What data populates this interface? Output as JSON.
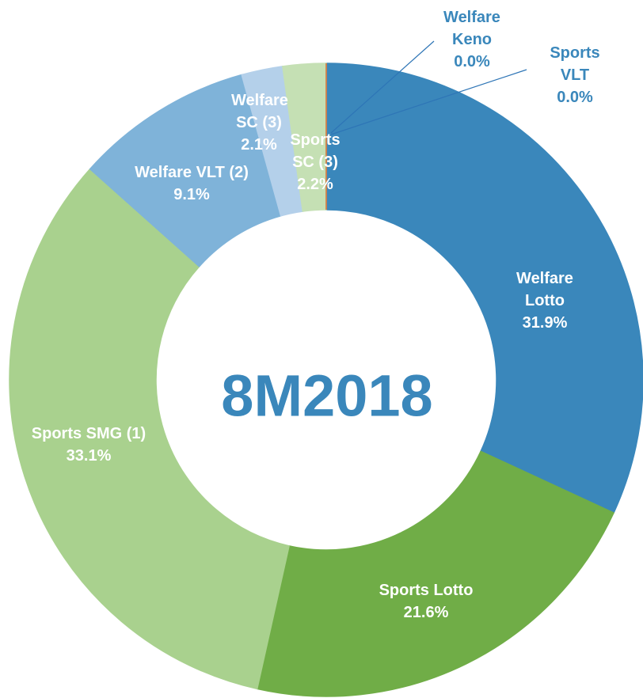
{
  "chart_data": {
    "type": "donut",
    "title": "8M2018",
    "categories": [
      "Welfare Lotto",
      "Sports Lotto",
      "Sports SMG (1)",
      "Welfare VLT (2)",
      "Welfare SC (3)",
      "Sports SC (3)",
      "Welfare Keno",
      "Sports VLT"
    ],
    "values": [
      31.9,
      21.6,
      33.1,
      9.1,
      2.1,
      2.2,
      0.0,
      0.0
    ],
    "value_labels": [
      "31.9%",
      "21.6%",
      "33.1%",
      "9.1%",
      "2.1%",
      "2.2%",
      "0.0%",
      "0.0%"
    ],
    "colors": [
      "#3a87bb",
      "#70ad47",
      "#a9d18e",
      "#7fb3d9",
      "#b4d0ea",
      "#c5e0b4",
      "#2e75b6",
      "#ed7d31"
    ]
  }
}
